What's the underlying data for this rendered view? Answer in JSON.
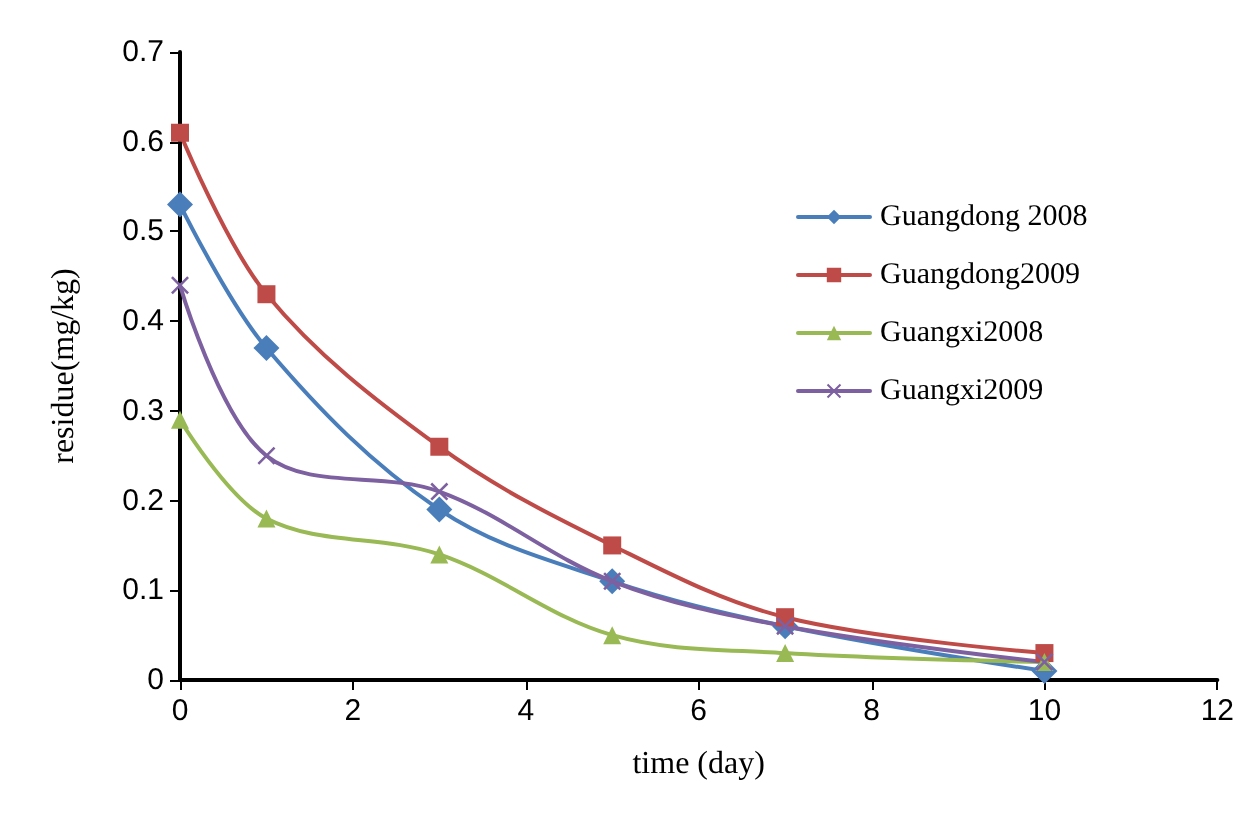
{
  "chart_data": {
    "type": "line",
    "xlabel": "time (day)",
    "ylabel": "residue(mg/kg)",
    "x": [
      0,
      1,
      3,
      5,
      7,
      10
    ],
    "series": [
      {
        "name": "Guangdong 2008",
        "color": "#4a7ebb",
        "marker": "diamond",
        "values": [
          0.53,
          0.37,
          0.19,
          0.11,
          0.06,
          0.01
        ]
      },
      {
        "name": "Guangdong2009",
        "color": "#be4b48",
        "marker": "square",
        "values": [
          0.61,
          0.43,
          0.26,
          0.15,
          0.07,
          0.03
        ]
      },
      {
        "name": "Guangxi2008",
        "color": "#98b954",
        "marker": "triangle",
        "values": [
          0.29,
          0.18,
          0.14,
          0.05,
          0.03,
          0.02
        ]
      },
      {
        "name": "Guangxi2009",
        "color": "#7d60a0",
        "marker": "cross",
        "values": [
          0.44,
          0.25,
          0.21,
          0.11,
          0.06,
          0.02
        ]
      }
    ],
    "xlim": [
      0,
      12
    ],
    "xticks": [
      0,
      2,
      4,
      6,
      8,
      10,
      12
    ],
    "ylim": [
      0,
      0.7
    ],
    "yticks": [
      0,
      0.1,
      0.2,
      0.3,
      0.4,
      0.5,
      0.6,
      0.7
    ],
    "grid": false,
    "legend": "right",
    "line_style": "solid"
  }
}
